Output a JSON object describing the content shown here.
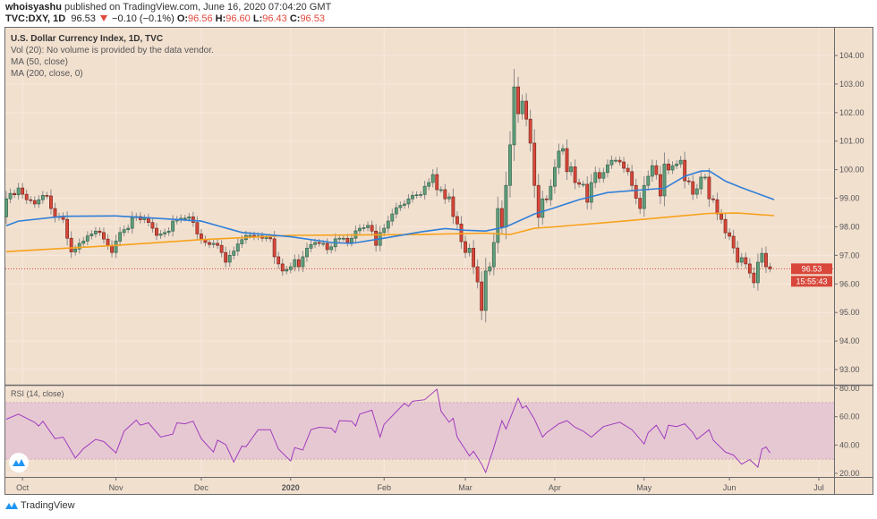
{
  "header": {
    "publisher": "whoisyashu",
    "published_text": "published on TradingView.com, June 16, 2020 07:04:20 GMT",
    "symbol": "TVC:DXY, 1D",
    "last": "96.53",
    "change": "−0.10 (−0.1%)",
    "direction_icon": "triangle-down-icon",
    "o_label": "O:",
    "o": "96.56",
    "h_label": "H:",
    "h": "96.60",
    "l_label": "L:",
    "l": "96.43",
    "c_label": "C:",
    "c": "96.53"
  },
  "legend": {
    "title": "U.S. Dollar Currency Index, 1D, TVC",
    "vol": "Vol (20): No volume is provided by the data vendor.",
    "ma50": "MA (50, close)",
    "ma200": "MA (200, close, 0)"
  },
  "rsi_label": "RSI (14, close)",
  "price_label": "96.53",
  "countdown": "15:55:43",
  "footer": {
    "brand": "TradingView"
  },
  "colors": {
    "background": "#f2e0cf",
    "grid": "#f7e9dd",
    "up": "#5f9f7c",
    "down": "#d8473a",
    "ma50": "#2f7fd8",
    "ma200": "#f7a21b",
    "rsi": "#a03cbe",
    "rsi_band": "#e6c8d2",
    "price_line": "#d8473a"
  },
  "chart_data": [
    {
      "type": "candlestick",
      "title": "U.S. Dollar Currency Index, 1D, TVC",
      "interval": "1D",
      "first_date": "2019-09-25",
      "first_open": 98.35,
      "close": [
        98.98,
        99.17,
        99.12,
        99.36,
        99.14,
        98.95,
        98.92,
        98.8,
        98.95,
        99.1,
        99.08,
        98.64,
        98.33,
        98.36,
        98.26,
        97.6,
        97.12,
        97.22,
        97.42,
        97.5,
        97.68,
        97.75,
        97.85,
        97.8,
        97.57,
        97.35,
        97.1,
        97.5,
        97.8,
        97.9,
        97.95,
        98.32,
        98.36,
        98.25,
        98.3,
        98.15,
        97.95,
        97.7,
        97.75,
        97.8,
        97.85,
        98.2,
        98.25,
        98.3,
        98.3,
        98.35,
        98.15,
        97.75,
        97.55,
        97.45,
        97.38,
        97.42,
        97.35,
        97.1,
        96.76,
        97.0,
        97.15,
        97.4,
        97.55,
        97.7,
        97.7,
        97.65,
        97.68,
        97.6,
        97.62,
        97.58,
        96.95,
        96.7,
        96.45,
        96.5,
        96.6,
        96.85,
        96.6,
        96.95,
        97.25,
        97.38,
        97.45,
        97.42,
        97.42,
        97.2,
        97.3,
        97.58,
        97.6,
        97.6,
        97.45,
        97.6,
        97.86,
        97.95,
        97.97,
        98.05,
        97.85,
        97.35,
        97.8,
        97.95,
        98.2,
        98.45,
        98.67,
        98.75,
        98.8,
        98.98,
        99.1,
        99.12,
        99.13,
        99.42,
        99.55,
        99.83,
        99.3,
        99.3,
        98.98,
        99.05,
        98.36,
        98.1,
        97.48,
        97.1,
        97.25,
        96.6,
        96.07,
        95.07,
        96.45,
        96.6,
        97.45,
        98.64,
        98.0,
        99.45,
        100.87,
        102.9,
        101.96,
        102.4,
        101.77,
        100.93,
        99.45,
        98.33,
        98.98,
        98.95,
        99.42,
        100.08,
        100.65,
        100.74,
        99.93,
        100.1,
        99.55,
        99.49,
        99.49,
        98.86,
        99.55,
        99.9,
        99.7,
        99.9,
        100.17,
        100.33,
        100.33,
        100.27,
        100.05,
        99.93,
        99.45,
        99.0,
        98.64,
        99.45,
        99.77,
        100.14,
        99.83,
        99.08,
        100.2,
        99.99,
        100.14,
        100.2,
        100.33,
        99.61,
        99.58,
        99.14,
        99.33,
        99.74,
        99.74,
        98.98,
        98.95,
        98.45,
        98.26,
        97.79,
        97.67,
        97.26,
        96.76,
        96.92,
        96.7,
        96.38,
        96.04,
        96.76,
        97.07,
        96.6,
        96.53
      ],
      "ma50": [
        [
          "2019-09-25",
          98.04
        ],
        [
          "2019-09-30",
          98.2
        ],
        [
          "2019-10-15",
          98.37
        ],
        [
          "2019-11-01",
          98.38
        ],
        [
          "2019-11-15",
          98.3
        ],
        [
          "2019-12-02",
          98.2
        ],
        [
          "2019-12-16",
          97.8
        ],
        [
          "2020-01-01",
          97.65
        ],
        [
          "2020-01-15",
          97.45
        ],
        [
          "2020-01-22",
          97.42
        ],
        [
          "2020-02-03",
          97.6
        ],
        [
          "2020-02-14",
          97.82
        ],
        [
          "2020-02-24",
          97.94
        ],
        [
          "2020-03-02",
          97.88
        ],
        [
          "2020-03-09",
          97.85
        ],
        [
          "2020-03-16",
          98.0
        ],
        [
          "2020-03-25",
          98.45
        ],
        [
          "2020-04-01",
          98.67
        ],
        [
          "2020-04-09",
          98.95
        ],
        [
          "2020-04-20",
          99.2
        ],
        [
          "2020-05-01",
          99.3
        ],
        [
          "2020-05-08",
          99.35
        ],
        [
          "2020-05-15",
          99.77
        ],
        [
          "2020-05-21",
          99.95
        ],
        [
          "2020-05-25",
          99.96
        ],
        [
          "2020-05-29",
          99.6
        ],
        [
          "2020-06-04",
          99.37
        ],
        [
          "2020-06-16",
          98.95
        ]
      ],
      "ma200": [
        [
          "2019-09-25",
          97.13
        ],
        [
          "2019-11-01",
          97.35
        ],
        [
          "2019-12-02",
          97.55
        ],
        [
          "2020-01-01",
          97.7
        ],
        [
          "2020-02-14",
          97.73
        ],
        [
          "2020-03-09",
          97.78
        ],
        [
          "2020-03-17",
          97.73
        ],
        [
          "2020-03-25",
          97.95
        ],
        [
          "2020-04-01",
          98.0
        ],
        [
          "2020-04-24",
          98.2
        ],
        [
          "2020-05-08",
          98.33
        ],
        [
          "2020-05-25",
          98.47
        ],
        [
          "2020-06-03",
          98.48
        ],
        [
          "2020-06-16",
          98.39
        ]
      ],
      "last_price": 96.53,
      "y_ticks": [
        "93.00",
        "94.00",
        "95.00",
        "96.00",
        "97.00",
        "98.00",
        "99.00",
        "100.00",
        "101.00",
        "102.00",
        "103.00",
        "104.00"
      ],
      "ylim": [
        92.4,
        105.0
      ],
      "x_ticks": [
        [
          "Oct",
          "2019-10-01"
        ],
        [
          "Nov",
          "2019-11-01"
        ],
        [
          "Dec",
          "2019-12-02"
        ],
        [
          "2020",
          "2020-01-01"
        ],
        [
          "Feb",
          "2020-02-03"
        ],
        [
          "Mar",
          "2020-03-02"
        ],
        [
          "Apr",
          "2020-04-01"
        ],
        [
          "May",
          "2020-05-01"
        ],
        [
          "Jun",
          "2020-06-01"
        ],
        [
          "Jul",
          "2020-07-01"
        ]
      ],
      "grid": true
    },
    {
      "type": "line",
      "title": "RSI (14, close)",
      "ylim": [
        18,
        82
      ],
      "band": [
        30,
        70
      ],
      "y_ticks": [
        "20.00",
        "40.00",
        "60.00",
        "80.00"
      ],
      "points": [
        [
          "2019-09-25",
          58.2
        ],
        [
          "2019-09-30",
          61.8
        ],
        [
          "2019-10-04",
          56
        ],
        [
          "2019-10-07",
          53.4
        ],
        [
          "2019-10-08",
          56.8
        ],
        [
          "2019-10-11",
          44.5
        ],
        [
          "2019-10-15",
          45.6
        ],
        [
          "2019-10-18",
          30.8
        ],
        [
          "2019-10-22",
          37.5
        ],
        [
          "2019-10-25",
          44
        ],
        [
          "2019-10-29",
          42.4
        ],
        [
          "2019-11-01",
          34.4
        ],
        [
          "2019-11-05",
          49.8
        ],
        [
          "2019-11-08",
          57.6
        ],
        [
          "2019-11-11",
          54
        ],
        [
          "2019-11-13",
          55.7
        ],
        [
          "2019-11-18",
          45.6
        ],
        [
          "2019-11-21",
          47.7
        ],
        [
          "2019-11-22",
          55.7
        ],
        [
          "2019-11-26",
          55
        ],
        [
          "2019-11-28",
          56.8
        ],
        [
          "2019-12-02",
          44.5
        ],
        [
          "2019-12-05",
          35
        ],
        [
          "2019-12-06",
          43.4
        ],
        [
          "2019-12-10",
          40.3
        ],
        [
          "2019-12-12",
          28
        ],
        [
          "2019-12-16",
          39.2
        ],
        [
          "2019-12-17",
          38.8
        ],
        [
          "2019-12-20",
          50.8
        ],
        [
          "2019-12-25",
          50.8
        ],
        [
          "2019-12-27",
          37.1
        ],
        [
          "2020-01-01",
          28.7
        ],
        [
          "2020-01-02",
          38.2
        ],
        [
          "2020-01-06",
          36.5
        ],
        [
          "2020-01-08",
          50.8
        ],
        [
          "2020-01-10",
          52.5
        ],
        [
          "2020-01-15",
          51.9
        ],
        [
          "2020-01-16",
          48.7
        ],
        [
          "2020-01-17",
          57.2
        ],
        [
          "2020-01-22",
          56.8
        ],
        [
          "2020-01-23",
          53.4
        ],
        [
          "2020-01-24",
          61.8
        ],
        [
          "2020-01-29",
          64.6
        ],
        [
          "2020-01-31",
          45.6
        ],
        [
          "2020-02-03",
          54.6
        ],
        [
          "2020-02-06",
          63.5
        ],
        [
          "2020-02-10",
          69.4
        ],
        [
          "2020-02-11",
          67.3
        ],
        [
          "2020-02-12",
          70.9
        ],
        [
          "2020-02-17",
          72
        ],
        [
          "2020-02-20",
          79.4
        ],
        [
          "2020-02-21",
          63.9
        ],
        [
          "2020-02-25",
          56.1
        ],
        [
          "2020-02-26",
          58.9
        ],
        [
          "2020-02-27",
          45.6
        ],
        [
          "2020-03-03",
          32.3
        ],
        [
          "2020-03-04",
          35.6
        ],
        [
          "2020-03-06",
          26.5
        ],
        [
          "2020-03-09",
          20.6
        ],
        [
          "2020-03-11",
          38.2
        ],
        [
          "2020-03-13",
          57.2
        ],
        [
          "2020-03-16",
          51.3
        ],
        [
          "2020-03-19",
          73
        ],
        [
          "2020-03-20",
          66.1
        ],
        [
          "2020-03-23",
          67.7
        ],
        [
          "2020-03-25",
          58.2
        ],
        [
          "2020-03-27",
          45.6
        ],
        [
          "2020-03-30",
          48.7
        ],
        [
          "2020-04-02",
          55
        ],
        [
          "2020-04-06",
          57.2
        ],
        [
          "2020-04-08",
          52.5
        ],
        [
          "2020-04-10",
          49.8
        ],
        [
          "2020-04-14",
          45.6
        ],
        [
          "2020-04-17",
          53
        ],
        [
          "2020-04-23",
          56.1
        ],
        [
          "2020-04-28",
          50.8
        ],
        [
          "2020-05-01",
          40.7
        ],
        [
          "2020-05-04",
          48.7
        ],
        [
          "2020-05-06",
          54
        ],
        [
          "2020-05-08",
          44.5
        ],
        [
          "2020-05-11",
          54
        ],
        [
          "2020-05-13",
          53
        ],
        [
          "2020-05-15",
          55
        ],
        [
          "2020-05-19",
          48.7
        ],
        [
          "2020-05-20",
          44
        ],
        [
          "2020-05-25",
          50.8
        ],
        [
          "2020-05-26",
          43.4
        ],
        [
          "2020-05-29",
          35
        ],
        [
          "2020-06-02",
          32.9
        ],
        [
          "2020-06-04",
          26.5
        ],
        [
          "2020-06-08",
          29.7
        ],
        [
          "2020-06-10",
          24.4
        ],
        [
          "2020-06-11",
          37.1
        ],
        [
          "2020-06-12",
          38.6
        ],
        [
          "2020-06-15",
          34.4
        ]
      ]
    }
  ]
}
